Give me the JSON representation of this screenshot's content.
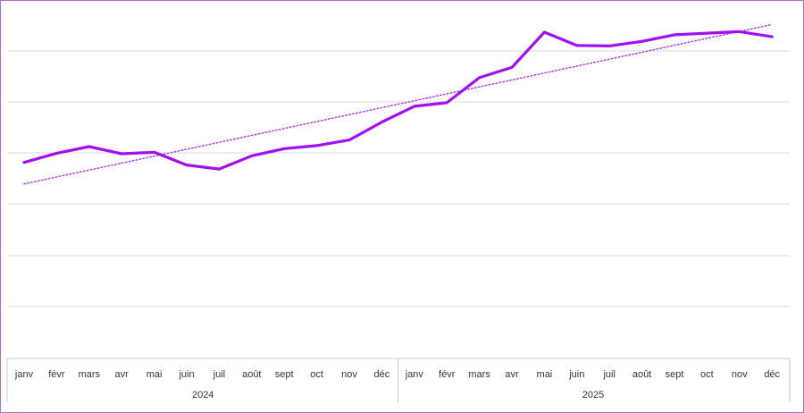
{
  "chart_data": {
    "type": "line",
    "title": "",
    "xlabel": "",
    "ylabel": "",
    "grid": true,
    "y_axis_labels_visible": false,
    "ylim": [
      0,
      7
    ],
    "categories": [
      "janv",
      "févr",
      "mars",
      "avr",
      "mai",
      "juin",
      "juil",
      "août",
      "sept",
      "oct",
      "nov",
      "déc",
      "janv",
      "févr",
      "mars",
      "avr",
      "mai",
      "juin",
      "juil",
      "août",
      "sept",
      "oct",
      "nov",
      "déc"
    ],
    "groups": [
      {
        "label": "2024",
        "count": 12
      },
      {
        "label": "2025",
        "count": 12
      }
    ],
    "series": [
      {
        "color": "#a20ff0",
        "values": [
          3.82,
          4.0,
          4.13,
          3.99,
          4.02,
          3.77,
          3.69,
          3.95,
          4.09,
          4.15,
          4.26,
          4.61,
          4.92,
          4.99,
          5.48,
          5.68,
          6.37,
          6.11,
          6.1,
          6.19,
          6.32,
          6.35,
          6.38,
          6.28
        ]
      }
    ],
    "trendline": {
      "type": "linear",
      "style": "dotted",
      "color": "#b23ef0",
      "start": 3.4,
      "end": 6.52
    }
  }
}
